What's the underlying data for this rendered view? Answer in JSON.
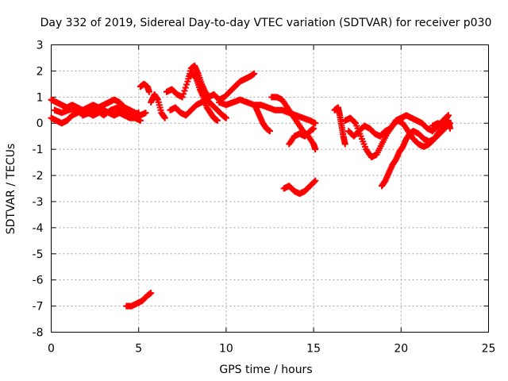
{
  "chart_data": {
    "type": "scatter",
    "title": "Day 332 of 2019, Sidereal Day-to-day VTEC variation (SDTVAR) for receiver p030",
    "xlabel": "GPS time / hours",
    "ylabel": "SDTVAR / TECUs",
    "xlim": [
      0,
      25
    ],
    "ylim": [
      -8,
      3
    ],
    "xticks": [
      0,
      5,
      10,
      15,
      20,
      25
    ],
    "yticks": [
      3,
      2,
      1,
      0,
      -1,
      -2,
      -3,
      -4,
      -5,
      -6,
      -7,
      -8
    ],
    "grid": true,
    "marker": "+",
    "color": "#ff0000",
    "series": [
      {
        "name": "seg-a-upper",
        "points": [
          [
            0.0,
            0.9
          ],
          [
            0.3,
            0.8
          ],
          [
            0.6,
            0.7
          ],
          [
            0.9,
            0.6
          ],
          [
            1.2,
            0.7
          ],
          [
            1.5,
            0.6
          ],
          [
            1.8,
            0.5
          ],
          [
            2.1,
            0.6
          ],
          [
            2.4,
            0.7
          ],
          [
            2.7,
            0.6
          ],
          [
            3.0,
            0.7
          ],
          [
            3.3,
            0.8
          ],
          [
            3.6,
            0.9
          ],
          [
            3.9,
            0.8
          ],
          [
            4.2,
            0.6
          ],
          [
            4.5,
            0.5
          ],
          [
            4.8,
            0.4
          ],
          [
            5.1,
            0.3
          ],
          [
            5.4,
            0.4
          ]
        ]
      },
      {
        "name": "seg-a-lower",
        "points": [
          [
            0.0,
            0.2
          ],
          [
            0.3,
            0.1
          ],
          [
            0.6,
            0.0
          ],
          [
            0.9,
            0.1
          ],
          [
            1.2,
            0.3
          ],
          [
            1.5,
            0.4
          ],
          [
            1.8,
            0.5
          ],
          [
            2.1,
            0.4
          ],
          [
            2.4,
            0.3
          ],
          [
            2.7,
            0.4
          ],
          [
            3.0,
            0.5
          ],
          [
            3.3,
            0.4
          ],
          [
            3.6,
            0.3
          ],
          [
            3.9,
            0.4
          ],
          [
            4.2,
            0.3
          ],
          [
            4.5,
            0.2
          ],
          [
            4.8,
            0.2
          ],
          [
            5.1,
            0.1
          ]
        ]
      },
      {
        "name": "seg-a-mid",
        "points": [
          [
            0.2,
            0.5
          ],
          [
            0.6,
            0.4
          ],
          [
            1.0,
            0.5
          ],
          [
            1.4,
            0.6
          ],
          [
            1.8,
            0.3
          ],
          [
            2.2,
            0.4
          ],
          [
            2.6,
            0.5
          ],
          [
            3.0,
            0.3
          ],
          [
            3.4,
            0.5
          ],
          [
            3.8,
            0.6
          ],
          [
            4.2,
            0.4
          ],
          [
            4.6,
            0.3
          ],
          [
            5.0,
            0.4
          ]
        ]
      },
      {
        "name": "seg-b",
        "points": [
          [
            5.1,
            1.4
          ],
          [
            5.3,
            1.5
          ],
          [
            5.5,
            1.4
          ],
          [
            5.6,
            1.2
          ]
        ]
      },
      {
        "name": "seg-c",
        "points": [
          [
            5.7,
            0.8
          ],
          [
            5.9,
            1.1
          ],
          [
            6.1,
            0.9
          ],
          [
            6.3,
            0.4
          ],
          [
            6.5,
            0.2
          ]
        ]
      },
      {
        "name": "seg-d-upper",
        "points": [
          [
            6.6,
            1.2
          ],
          [
            6.9,
            1.3
          ],
          [
            7.2,
            1.1
          ],
          [
            7.5,
            1.0
          ],
          [
            7.8,
            1.6
          ],
          [
            8.0,
            2.1
          ],
          [
            8.2,
            2.2
          ],
          [
            8.4,
            1.9
          ],
          [
            8.6,
            1.5
          ],
          [
            8.8,
            1.2
          ],
          [
            9.0,
            1.0
          ],
          [
            9.3,
            1.1
          ],
          [
            9.6,
            0.9
          ]
        ]
      },
      {
        "name": "seg-d-lower",
        "points": [
          [
            6.8,
            0.5
          ],
          [
            7.1,
            0.6
          ],
          [
            7.4,
            0.4
          ],
          [
            7.7,
            0.3
          ],
          [
            8.0,
            0.5
          ],
          [
            8.3,
            0.7
          ],
          [
            8.6,
            0.8
          ],
          [
            8.9,
            0.9
          ],
          [
            9.2,
            0.7
          ],
          [
            9.5,
            0.5
          ],
          [
            9.8,
            0.3
          ],
          [
            10.0,
            0.2
          ]
        ]
      },
      {
        "name": "seg-d-mid",
        "points": [
          [
            7.9,
            1.8
          ],
          [
            8.1,
            1.9
          ],
          [
            8.3,
            1.7
          ],
          [
            8.5,
            1.3
          ],
          [
            8.7,
            1.0
          ],
          [
            8.9,
            0.6
          ],
          [
            9.1,
            0.4
          ],
          [
            9.3,
            0.2
          ],
          [
            9.5,
            0.1
          ]
        ]
      },
      {
        "name": "seg-e",
        "points": [
          [
            9.6,
            0.9
          ],
          [
            9.9,
            1.0
          ],
          [
            10.2,
            1.2
          ],
          [
            10.5,
            1.4
          ],
          [
            10.8,
            1.6
          ],
          [
            11.1,
            1.7
          ],
          [
            11.4,
            1.8
          ],
          [
            11.6,
            1.9
          ]
        ]
      },
      {
        "name": "seg-f",
        "points": [
          [
            9.6,
            0.8
          ],
          [
            10.0,
            0.7
          ],
          [
            10.4,
            0.8
          ],
          [
            10.8,
            0.9
          ],
          [
            11.2,
            0.8
          ],
          [
            11.6,
            0.7
          ],
          [
            12.0,
            0.7
          ],
          [
            12.4,
            0.6
          ],
          [
            12.8,
            0.5
          ],
          [
            13.2,
            0.5
          ],
          [
            13.6,
            0.4
          ],
          [
            14.0,
            0.3
          ],
          [
            14.4,
            0.2
          ],
          [
            14.8,
            0.1
          ],
          [
            15.1,
            0.0
          ]
        ]
      },
      {
        "name": "seg-g",
        "points": [
          [
            11.7,
            0.6
          ],
          [
            11.9,
            0.3
          ],
          [
            12.1,
            0.0
          ],
          [
            12.3,
            -0.2
          ],
          [
            12.5,
            -0.3
          ]
        ]
      },
      {
        "name": "seg-h",
        "points": [
          [
            12.6,
            1.0
          ],
          [
            12.9,
            1.0
          ],
          [
            13.2,
            0.9
          ],
          [
            13.5,
            0.6
          ],
          [
            13.8,
            0.3
          ],
          [
            14.1,
            0.0
          ],
          [
            14.4,
            -0.3
          ],
          [
            14.7,
            -0.5
          ],
          [
            15.0,
            -0.8
          ],
          [
            15.1,
            -1.0
          ]
        ]
      },
      {
        "name": "seg-i",
        "points": [
          [
            13.6,
            -0.8
          ],
          [
            13.9,
            -0.5
          ],
          [
            14.2,
            -0.4
          ],
          [
            14.5,
            -0.5
          ],
          [
            14.8,
            -0.3
          ],
          [
            15.0,
            -0.2
          ]
        ]
      },
      {
        "name": "seg-j",
        "points": [
          [
            13.3,
            -2.5
          ],
          [
            13.6,
            -2.4
          ],
          [
            13.9,
            -2.6
          ],
          [
            14.2,
            -2.7
          ],
          [
            14.5,
            -2.6
          ],
          [
            14.8,
            -2.4
          ],
          [
            15.1,
            -2.2
          ]
        ]
      },
      {
        "name": "seg-k",
        "points": [
          [
            4.3,
            -7.0
          ],
          [
            4.6,
            -7.0
          ],
          [
            4.9,
            -6.9
          ],
          [
            5.2,
            -6.8
          ],
          [
            5.5,
            -6.6
          ],
          [
            5.7,
            -6.5
          ]
        ]
      },
      {
        "name": "seg-l",
        "points": [
          [
            16.2,
            0.5
          ],
          [
            16.4,
            0.6
          ],
          [
            16.5,
            0.3
          ],
          [
            16.6,
            -0.1
          ],
          [
            16.7,
            -0.5
          ],
          [
            16.8,
            -0.8
          ]
        ]
      },
      {
        "name": "seg-m",
        "points": [
          [
            16.8,
            0.1
          ],
          [
            17.1,
            0.2
          ],
          [
            17.4,
            0.0
          ],
          [
            17.7,
            -0.5
          ],
          [
            18.0,
            -1.0
          ],
          [
            18.3,
            -1.3
          ],
          [
            18.6,
            -1.2
          ],
          [
            18.9,
            -0.8
          ],
          [
            19.2,
            -0.4
          ],
          [
            19.5,
            -0.1
          ],
          [
            19.8,
            0.1
          ],
          [
            20.1,
            0.0
          ],
          [
            20.4,
            -0.3
          ],
          [
            20.7,
            -0.6
          ],
          [
            21.0,
            -0.8
          ],
          [
            21.3,
            -0.9
          ],
          [
            21.6,
            -0.8
          ],
          [
            21.9,
            -0.6
          ],
          [
            22.2,
            -0.4
          ],
          [
            22.5,
            -0.2
          ],
          [
            22.8,
            0.0
          ]
        ]
      },
      {
        "name": "seg-n",
        "points": [
          [
            17.0,
            -0.3
          ],
          [
            17.3,
            -0.5
          ],
          [
            17.6,
            -0.3
          ],
          [
            17.9,
            -0.1
          ],
          [
            18.2,
            -0.2
          ],
          [
            18.5,
            -0.4
          ],
          [
            18.8,
            -0.5
          ],
          [
            19.1,
            -0.3
          ],
          [
            19.4,
            -0.2
          ],
          [
            19.7,
            0.1
          ],
          [
            20.0,
            0.2
          ],
          [
            20.3,
            0.3
          ],
          [
            20.6,
            0.2
          ],
          [
            20.9,
            0.1
          ],
          [
            21.2,
            0.0
          ],
          [
            21.5,
            -0.2
          ],
          [
            21.8,
            -0.3
          ],
          [
            22.1,
            -0.1
          ],
          [
            22.4,
            0.1
          ],
          [
            22.7,
            0.3
          ]
        ]
      },
      {
        "name": "seg-o",
        "points": [
          [
            18.9,
            -2.4
          ],
          [
            19.1,
            -2.2
          ],
          [
            19.3,
            -1.9
          ],
          [
            19.5,
            -1.6
          ],
          [
            19.7,
            -1.4
          ],
          [
            19.9,
            -1.1
          ],
          [
            20.1,
            -0.9
          ],
          [
            20.3,
            -0.6
          ],
          [
            20.5,
            -0.4
          ],
          [
            20.7,
            -0.3
          ],
          [
            21.0,
            -0.4
          ],
          [
            21.3,
            -0.6
          ],
          [
            21.6,
            -0.7
          ],
          [
            21.9,
            -0.6
          ],
          [
            22.2,
            -0.3
          ],
          [
            22.5,
            0.1
          ],
          [
            22.7,
            0.3
          ]
        ]
      },
      {
        "name": "seg-p",
        "points": [
          [
            21.8,
            -0.1
          ],
          [
            22.1,
            0.0
          ],
          [
            22.4,
            -0.1
          ],
          [
            22.7,
            0.1
          ],
          [
            22.8,
            -0.2
          ]
        ]
      }
    ]
  }
}
